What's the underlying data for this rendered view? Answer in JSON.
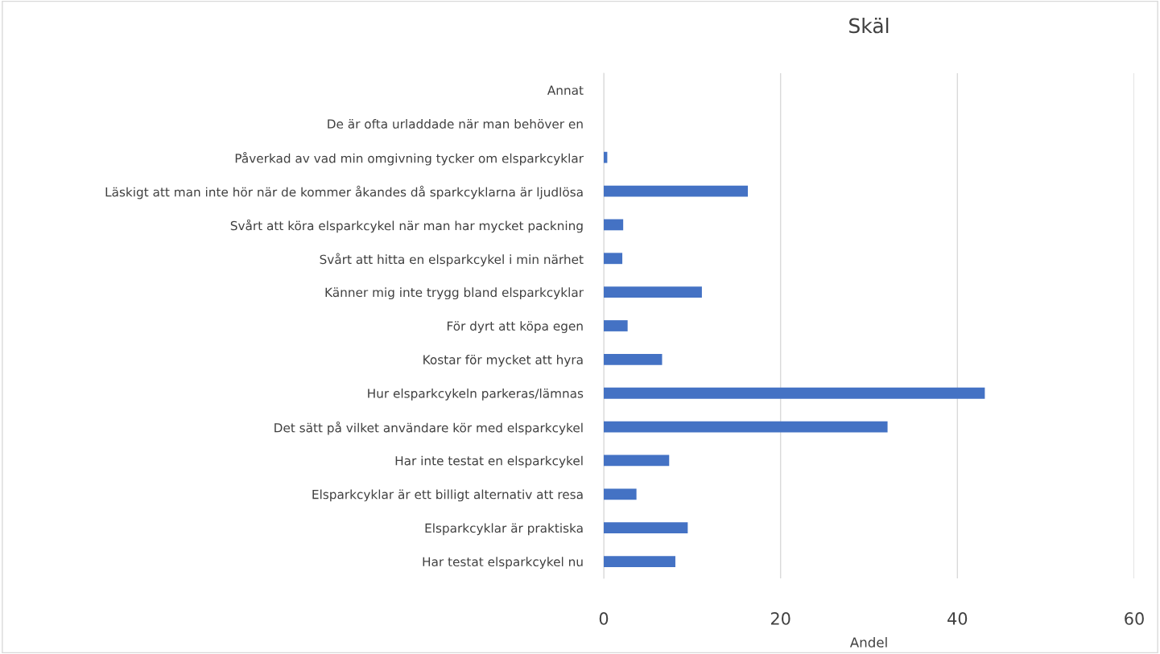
{
  "chart_data": {
    "type": "bar",
    "orientation": "horizontal",
    "title": "Skäl",
    "xlabel": "Andel",
    "categories": [
      "Annat",
      "De är ofta urladdade när man behöver en",
      "Påverkad av vad min omgivning tycker om elsparkcyklar",
      "Läskigt att man inte hör när de kommer åkandes då sparkcyklarna är ljudlösa",
      "Svårt att köra elsparkcykel när man har mycket packning",
      "Svårt att hitta en elsparkcykel i min närhet",
      "Känner mig inte trygg bland elsparkcyklar",
      "För dyrt att köpa egen",
      "Kostar för mycket att hyra",
      "Hur elsparkcykeln parkeras/lämnas",
      "Det sätt på vilket användare kör med elsparkcykel",
      "Har inte testat en elsparkcykel",
      "Elsparkcyklar är ett billigt alternativ att resa",
      "Elsparkcyklar är praktiska",
      "Har testat elsparkcykel nu"
    ],
    "values": [
      0,
      0,
      0.4,
      16.3,
      2.2,
      2.1,
      11.1,
      2.7,
      6.6,
      43.1,
      32.1,
      7.4,
      3.7,
      9.5,
      8.1
    ],
    "color": "#4472c4",
    "xlim": [
      0,
      60
    ],
    "xticks": [
      0,
      20,
      40,
      60
    ],
    "grid": "x",
    "legend": false
  }
}
